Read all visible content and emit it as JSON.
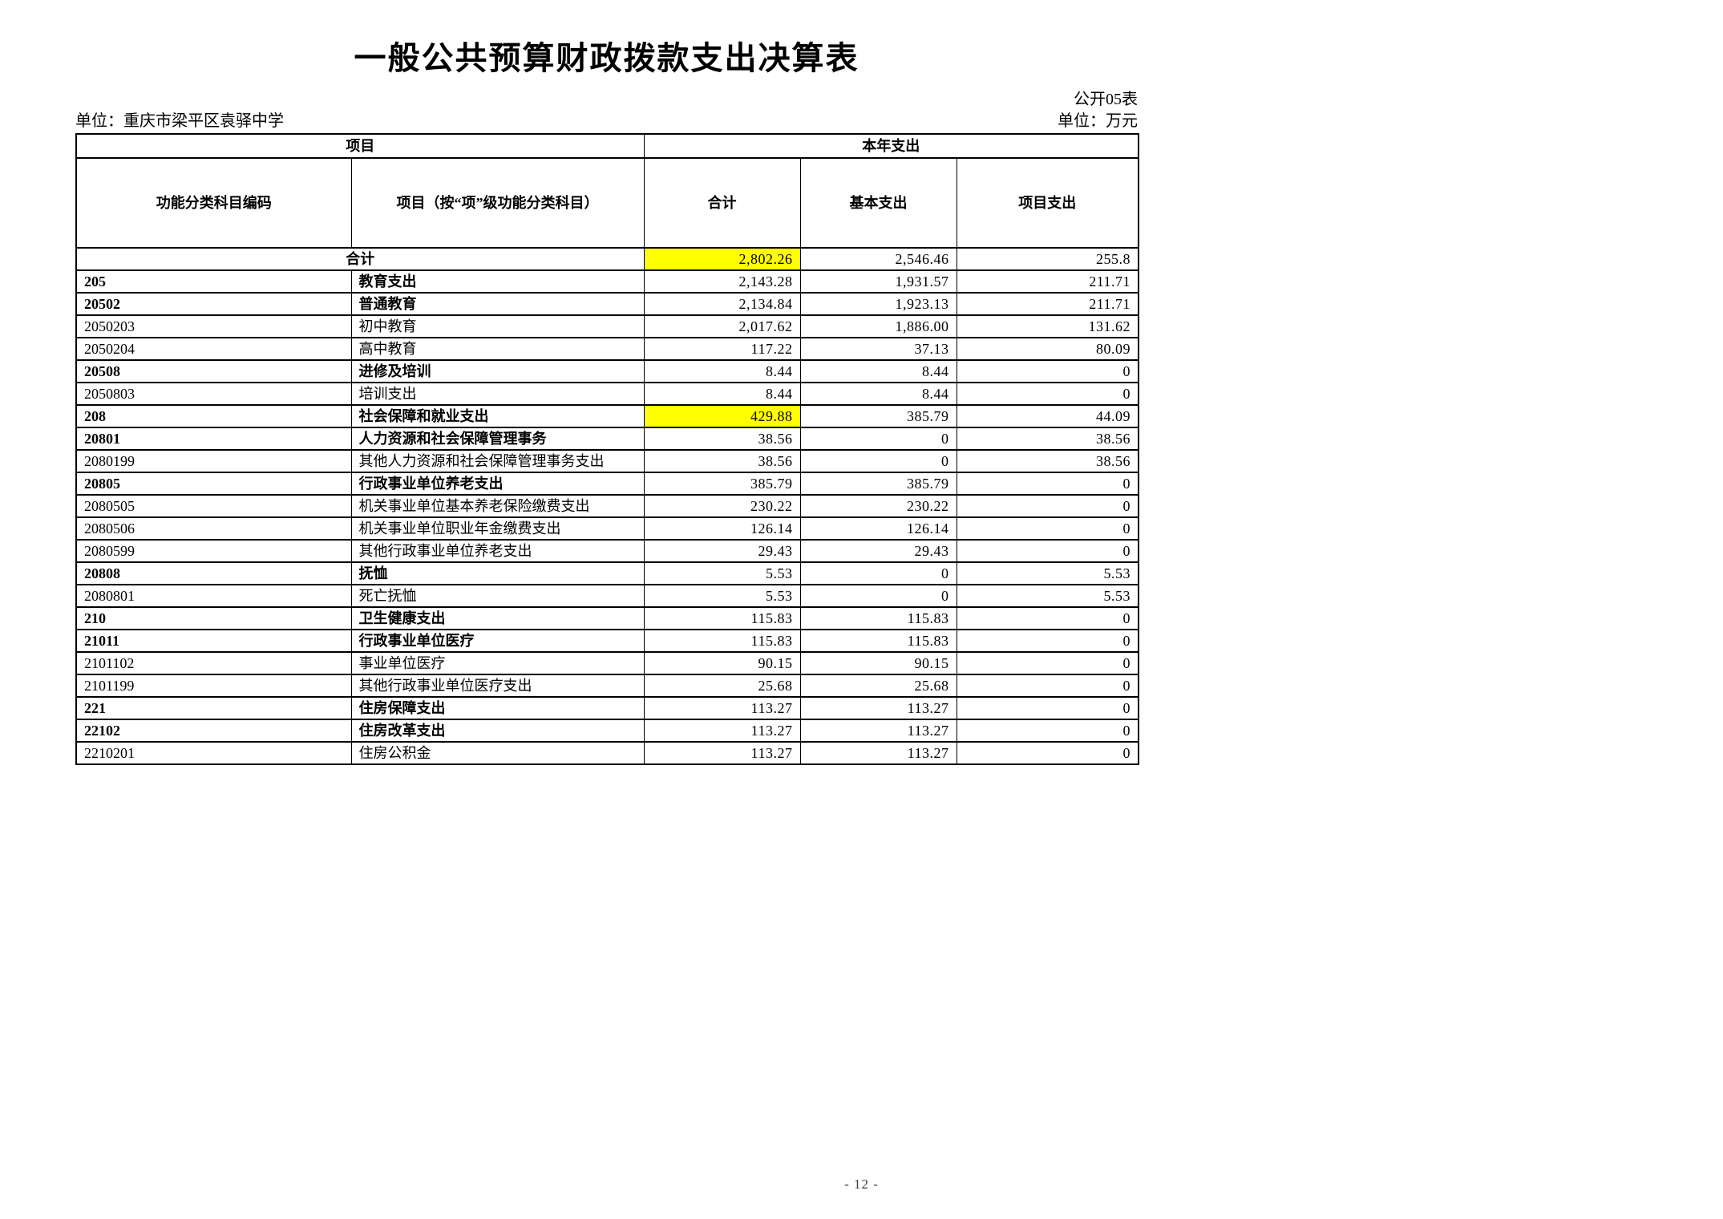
{
  "page": {
    "title": "一般公共预算财政拨款支出决算表",
    "form_label": "公开05表",
    "unit_name": "单位：重庆市梁平区袁驿中学",
    "unit_measure": "单位：万元",
    "page_number": "- 12 -"
  },
  "table": {
    "header": {
      "group_item": "项目",
      "group_current_year": "本年支出",
      "col_code": "功能分类科目编码",
      "col_item": "项目（按“项”级功能分类科目）",
      "col_total": "合计",
      "col_basic": "基本支出",
      "col_project": "项目支出"
    },
    "highlight_color": "#ffff00",
    "rows": [
      {
        "code": "",
        "item": "合计",
        "total": "2,802.26",
        "basic": "2,546.46",
        "project": "255.8",
        "bold": true,
        "merged": true,
        "highlight_total": true
      },
      {
        "code": "205",
        "item": "教育支出",
        "total": "2,143.28",
        "basic": "1,931.57",
        "project": "211.71",
        "bold": true
      },
      {
        "code": "20502",
        "item": "普通教育",
        "total": "2,134.84",
        "basic": "1,923.13",
        "project": "211.71",
        "bold": true
      },
      {
        "code": "2050203",
        "item": "初中教育",
        "total": "2,017.62",
        "basic": "1,886.00",
        "project": "131.62"
      },
      {
        "code": "2050204",
        "item": "高中教育",
        "total": "117.22",
        "basic": "37.13",
        "project": "80.09"
      },
      {
        "code": "20508",
        "item": "进修及培训",
        "total": "8.44",
        "basic": "8.44",
        "project": "0",
        "bold": true
      },
      {
        "code": "2050803",
        "item": "培训支出",
        "total": "8.44",
        "basic": "8.44",
        "project": "0"
      },
      {
        "code": "208",
        "item": "社会保障和就业支出",
        "total": "429.88",
        "basic": "385.79",
        "project": "44.09",
        "bold": true,
        "highlight_total": true
      },
      {
        "code": "20801",
        "item": "人力资源和社会保障管理事务",
        "total": "38.56",
        "basic": "0",
        "project": "38.56",
        "bold": true
      },
      {
        "code": "2080199",
        "item": "其他人力资源和社会保障管理事务支出",
        "total": "38.56",
        "basic": "0",
        "project": "38.56"
      },
      {
        "code": "20805",
        "item": "行政事业单位养老支出",
        "total": "385.79",
        "basic": "385.79",
        "project": "0",
        "bold": true
      },
      {
        "code": "2080505",
        "item": "机关事业单位基本养老保险缴费支出",
        "total": "230.22",
        "basic": "230.22",
        "project": "0"
      },
      {
        "code": "2080506",
        "item": "机关事业单位职业年金缴费支出",
        "total": "126.14",
        "basic": "126.14",
        "project": "0"
      },
      {
        "code": "2080599",
        "item": "其他行政事业单位养老支出",
        "total": "29.43",
        "basic": "29.43",
        "project": "0"
      },
      {
        "code": "20808",
        "item": "抚恤",
        "total": "5.53",
        "basic": "0",
        "project": "5.53",
        "bold": true
      },
      {
        "code": "2080801",
        "item": "死亡抚恤",
        "total": "5.53",
        "basic": "0",
        "project": "5.53"
      },
      {
        "code": "210",
        "item": "卫生健康支出",
        "total": "115.83",
        "basic": "115.83",
        "project": "0",
        "bold": true
      },
      {
        "code": "21011",
        "item": "行政事业单位医疗",
        "total": "115.83",
        "basic": "115.83",
        "project": "0",
        "bold": true
      },
      {
        "code": "2101102",
        "item": "事业单位医疗",
        "total": "90.15",
        "basic": "90.15",
        "project": "0"
      },
      {
        "code": "2101199",
        "item": "其他行政事业单位医疗支出",
        "total": "25.68",
        "basic": "25.68",
        "project": "0"
      },
      {
        "code": "221",
        "item": "住房保障支出",
        "total": "113.27",
        "basic": "113.27",
        "project": "0",
        "bold": true
      },
      {
        "code": "22102",
        "item": "住房改革支出",
        "total": "113.27",
        "basic": "113.27",
        "project": "0",
        "bold": true
      },
      {
        "code": "2210201",
        "item": "住房公积金",
        "total": "113.27",
        "basic": "113.27",
        "project": "0"
      }
    ]
  }
}
